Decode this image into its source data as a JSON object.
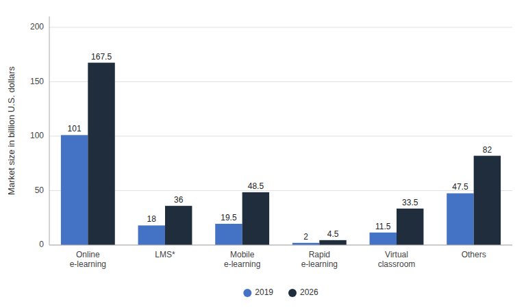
{
  "chart_data": {
    "type": "bar",
    "categories": [
      "Online\ne-learning",
      "LMS*",
      "Mobile\ne-learning",
      "Rapid\ne-learning",
      "Virtual\nclassroom",
      "Others"
    ],
    "series": [
      {
        "name": "2019",
        "color": "#4472C4",
        "values": [
          101,
          18,
          19.5,
          2,
          11.5,
          47.5
        ]
      },
      {
        "name": "2026",
        "color": "#1F2D3D",
        "values": [
          167.5,
          36,
          48.5,
          4.5,
          33.5,
          82
        ]
      }
    ],
    "ylabel": "Market size in billion U.S. dollars",
    "ylim": [
      0,
      210
    ],
    "yticks": [
      0,
      50,
      100,
      150,
      200
    ],
    "grid": true,
    "data_labels": true,
    "legend": "bottom"
  }
}
